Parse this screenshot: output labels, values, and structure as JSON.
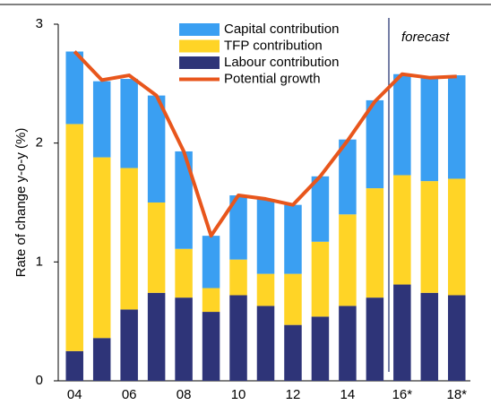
{
  "chart_data": {
    "type": "bar",
    "y_label": "Rate of change y-o-y (%)",
    "annotation": "forecast",
    "categories": [
      "04",
      null,
      "06",
      null,
      "08",
      null,
      "10",
      null,
      "12",
      null,
      "14",
      null,
      "16*",
      null,
      "18*"
    ],
    "ylim": [
      0,
      3
    ],
    "yticks": [
      0,
      1,
      2,
      3
    ],
    "series": [
      {
        "name": "Capital contribution",
        "type": "bar",
        "color": "#3a9ff2",
        "values": [
          0.61,
          0.64,
          0.75,
          0.9,
          0.82,
          0.44,
          0.54,
          0.63,
          0.58,
          0.55,
          0.63,
          0.74,
          0.85,
          0.87,
          0.87
        ]
      },
      {
        "name": "TFP contribution",
        "type": "bar",
        "color": "#ffd426",
        "values": [
          1.91,
          1.52,
          1.19,
          0.76,
          0.41,
          0.2,
          0.3,
          0.27,
          0.43,
          0.63,
          0.77,
          0.92,
          0.92,
          0.94,
          0.98
        ]
      },
      {
        "name": "Labour contribution",
        "type": "bar",
        "color": "#2e3478",
        "values": [
          0.25,
          0.36,
          0.6,
          0.74,
          0.7,
          0.58,
          0.72,
          0.63,
          0.47,
          0.54,
          0.63,
          0.7,
          0.81,
          0.74,
          0.72
        ]
      },
      {
        "name": "Potential growth",
        "type": "line",
        "color": "#e8561c",
        "values": [
          2.77,
          2.53,
          2.57,
          2.4,
          1.93,
          1.22,
          1.56,
          1.53,
          1.48,
          1.72,
          2.02,
          2.35,
          2.58,
          2.55,
          2.56
        ]
      }
    ]
  }
}
